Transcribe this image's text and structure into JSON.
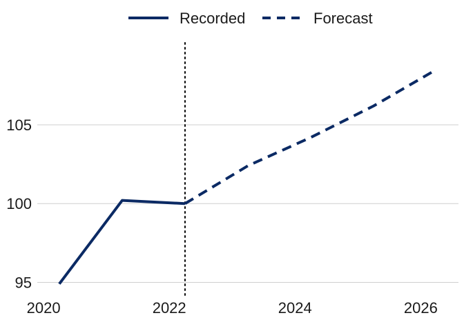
{
  "chart_data": {
    "type": "line",
    "title": "",
    "xlabel": "",
    "ylabel": "",
    "xlim": [
      2019.9,
      2026.6
    ],
    "ylim": [
      94.1,
      110.3
    ],
    "x_ticks": [
      2020,
      2022,
      2024,
      2026
    ],
    "y_ticks": [
      95,
      100,
      105
    ],
    "y_grid": true,
    "x_grid": false,
    "legend_position": "top-center",
    "colors": {
      "series": "#0b2a64",
      "reference_line": "#000000"
    },
    "series": [
      {
        "name": "Recorded",
        "style": "solid",
        "x": [
          2020.25,
          2021.25,
          2022.25
        ],
        "y": [
          94.9,
          100.2,
          100.0
        ]
      },
      {
        "name": "Forecast",
        "style": "dashed",
        "x": [
          2022.25,
          2023.25,
          2024.25,
          2025.25,
          2026.2
        ],
        "y": [
          100.0,
          102.4,
          104.2,
          106.2,
          108.4
        ]
      }
    ],
    "reference_lines": [
      {
        "axis": "x",
        "value": 2022.25,
        "style": "dotted"
      }
    ]
  }
}
